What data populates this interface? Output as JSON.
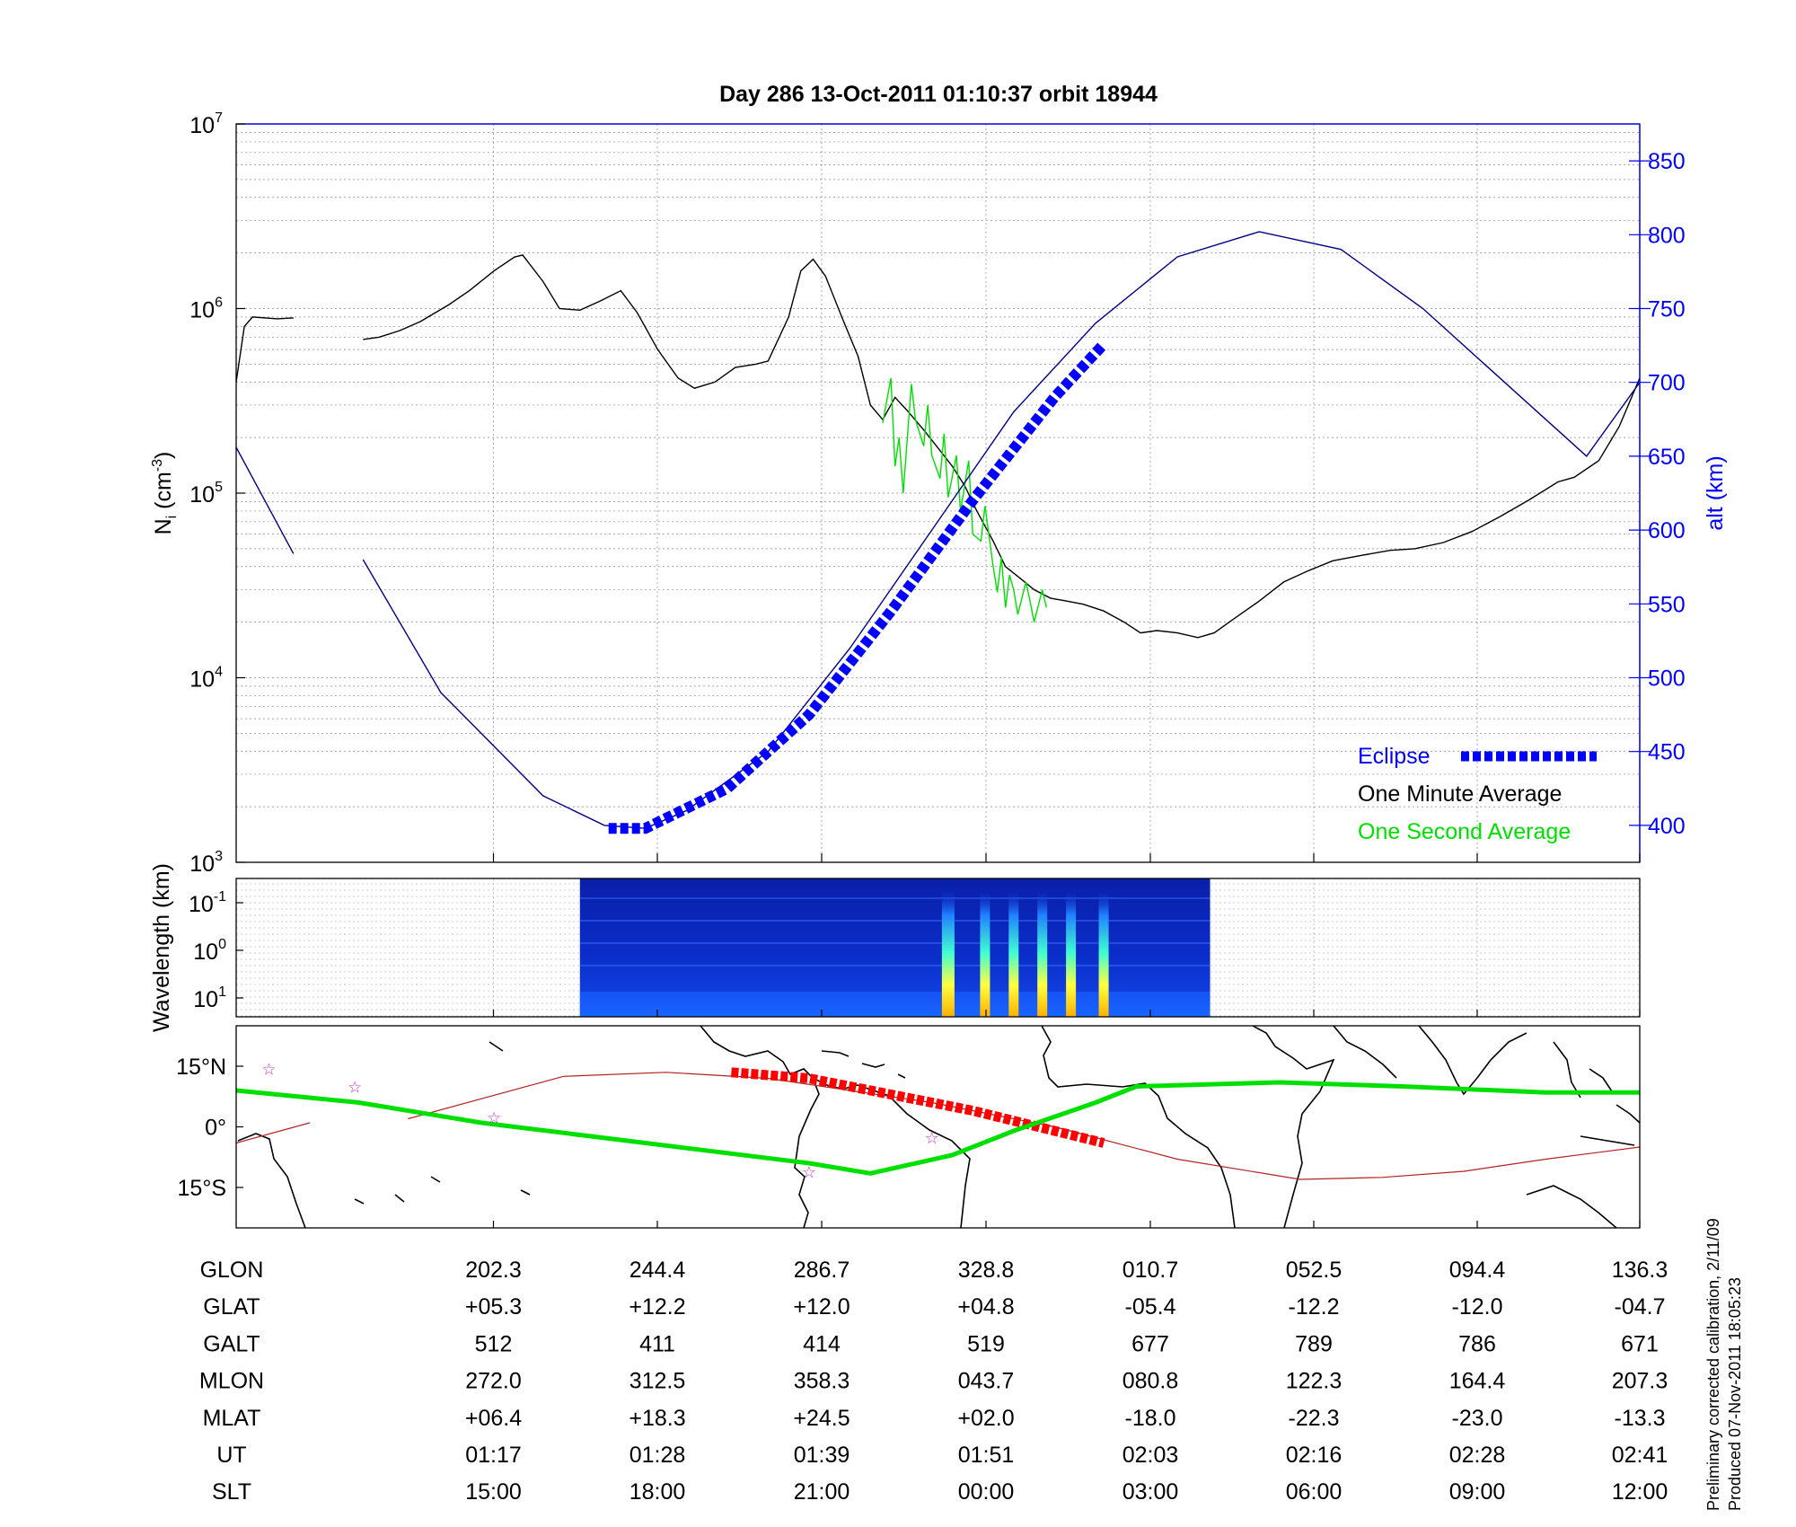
{
  "chart_data": [
    {
      "type": "line",
      "title": "Day 286  13-Oct-2011 01:10:37   orbit 18944",
      "ylabel": "N",
      "ylabel_sub": "i",
      "ylabel_unit": " (cm",
      "ylabel_unit_sup": "-3",
      "ylabel_unit_close": ")",
      "yscale": "log",
      "ylim": [
        1000,
        10000000
      ],
      "yticks": [
        {
          "base": "10",
          "exp": "3"
        },
        {
          "base": "10",
          "exp": "4"
        },
        {
          "base": "10",
          "exp": "5"
        },
        {
          "base": "10",
          "exp": "6"
        },
        {
          "base": "10",
          "exp": "7"
        }
      ],
      "y2label": "alt (km)",
      "y2lim": [
        375,
        875
      ],
      "y2ticks": [
        "400",
        "450",
        "500",
        "550",
        "600",
        "650",
        "700",
        "750",
        "800",
        "850"
      ],
      "x_ut": [
        "01:17",
        "01:28",
        "01:39",
        "01:51",
        "02:03",
        "02:16",
        "02:28",
        "02:41"
      ],
      "grid": true,
      "legend_position": "bottom-right",
      "legend": [
        {
          "label": "Eclipse",
          "color": "#0000ff"
        },
        {
          "label": "One Minute Average",
          "color": "#000000"
        },
        {
          "label": "One Second Average",
          "color": "#00e000"
        }
      ],
      "series": [
        {
          "name": "One Minute Average",
          "color": "#000000",
          "segments": [
            [
              [
                0,
                400000
              ],
              [
                0.02,
                800000
              ],
              [
                0.04,
                900000
              ],
              [
                0.1,
                880000
              ],
              [
                0.14,
                890000
              ]
            ],
            [
              [
                0.31,
                680000
              ],
              [
                0.35,
                700000
              ],
              [
                0.4,
                760000
              ],
              [
                0.45,
                850000
              ],
              [
                0.52,
                1050000
              ],
              [
                0.57,
                1250000
              ],
              [
                0.63,
                1600000
              ],
              [
                0.68,
                1900000
              ],
              [
                0.7,
                1950000
              ],
              [
                0.75,
                1400000
              ],
              [
                0.79,
                1000000
              ],
              [
                0.84,
                980000
              ],
              [
                0.89,
                1100000
              ],
              [
                0.94,
                1250000
              ],
              [
                0.98,
                950000
              ],
              [
                1.03,
                600000
              ],
              [
                1.08,
                420000
              ],
              [
                1.12,
                370000
              ],
              [
                1.17,
                400000
              ],
              [
                1.22,
                480000
              ],
              [
                1.27,
                500000
              ],
              [
                1.3,
                520000
              ],
              [
                1.35,
                900000
              ],
              [
                1.38,
                1600000
              ],
              [
                1.41,
                1850000
              ],
              [
                1.44,
                1500000
              ],
              [
                1.48,
                900000
              ],
              [
                1.52,
                550000
              ],
              [
                1.55,
                300000
              ],
              [
                1.58,
                250000
              ],
              [
                1.61,
                330000
              ],
              [
                1.64,
                280000
              ],
              [
                1.68,
                220000
              ],
              [
                1.72,
                170000
              ],
              [
                1.75,
                140000
              ],
              [
                1.78,
                110000
              ],
              [
                1.81,
                80000
              ],
              [
                1.85,
                55000
              ],
              [
                1.88,
                40000
              ],
              [
                1.92,
                34000
              ],
              [
                1.95,
                30000
              ],
              [
                1.99,
                27000
              ],
              [
                2.03,
                26000
              ],
              [
                2.07,
                25000
              ],
              [
                2.12,
                23000
              ],
              [
                2.17,
                20000
              ],
              [
                2.21,
                17500
              ],
              [
                2.25,
                18000
              ],
              [
                2.3,
                17500
              ],
              [
                2.35,
                16500
              ],
              [
                2.39,
                17500
              ],
              [
                2.44,
                21000
              ],
              [
                2.5,
                26000
              ],
              [
                2.56,
                33000
              ],
              [
                2.62,
                38000
              ],
              [
                2.68,
                43000
              ],
              [
                2.75,
                46000
              ],
              [
                2.82,
                49000
              ],
              [
                2.88,
                50000
              ],
              [
                2.95,
                54000
              ],
              [
                3.02,
                62000
              ],
              [
                3.09,
                75000
              ],
              [
                3.16,
                92000
              ],
              [
                3.23,
                115000
              ],
              [
                3.27,
                122000
              ],
              [
                3.33,
                150000
              ],
              [
                3.38,
                230000
              ],
              [
                3.43,
                420000
              ]
            ]
          ]
        },
        {
          "name": "One Second Average",
          "color": "#00e000",
          "segments": [
            [
              [
                1.58,
                240000
              ],
              [
                1.6,
                420000
              ],
              [
                1.61,
                140000
              ],
              [
                1.62,
                200000
              ],
              [
                1.63,
                100000
              ],
              [
                1.65,
                390000
              ],
              [
                1.66,
                250000
              ],
              [
                1.68,
                180000
              ],
              [
                1.69,
                300000
              ],
              [
                1.7,
                160000
              ],
              [
                1.72,
                120000
              ],
              [
                1.73,
                210000
              ],
              [
                1.74,
                95000
              ],
              [
                1.76,
                160000
              ],
              [
                1.77,
                80000
              ],
              [
                1.79,
                150000
              ],
              [
                1.8,
                60000
              ],
              [
                1.82,
                55000
              ],
              [
                1.83,
                85000
              ],
              [
                1.85,
                40000
              ],
              [
                1.86,
                29000
              ],
              [
                1.87,
                45000
              ],
              [
                1.88,
                24000
              ],
              [
                1.89,
                36000
              ],
              [
                1.9,
                30000
              ],
              [
                1.91,
                22000
              ],
              [
                1.93,
                33000
              ],
              [
                1.94,
                26000
              ],
              [
                1.95,
                20000
              ],
              [
                1.97,
                30000
              ],
              [
                1.98,
                24000
              ]
            ]
          ]
        },
        {
          "name": "alt (km)",
          "axis": "right",
          "color": "#00008b",
          "segments": [
            [
              [
                0,
                656
              ],
              [
                0.14,
                584
              ]
            ],
            [
              [
                0.31,
                580
              ],
              [
                0.5,
                490
              ],
              [
                0.75,
                420
              ],
              [
                0.9,
                400
              ],
              [
                1.0,
                398
              ],
              [
                1.1,
                410
              ],
              [
                1.3,
                450
              ],
              [
                1.5,
                520
              ],
              [
                1.7,
                600
              ],
              [
                1.9,
                680
              ],
              [
                2.1,
                740
              ],
              [
                2.3,
                785
              ],
              [
                2.5,
                802
              ],
              [
                2.7,
                790
              ],
              [
                2.9,
                750
              ],
              [
                3.1,
                700
              ],
              [
                3.3,
                650
              ],
              [
                3.43,
                700
              ]
            ]
          ]
        },
        {
          "name": "Eclipse",
          "axis": "right",
          "color": "#0000ff",
          "segments": [
            [
              [
                0.91,
                398
              ],
              [
                1.0,
                398
              ],
              [
                1.2,
                425
              ],
              [
                1.4,
                475
              ],
              [
                1.6,
                545
              ],
              [
                1.8,
                620
              ],
              [
                2.0,
                690
              ],
              [
                2.12,
                726
              ]
            ]
          ]
        }
      ]
    },
    {
      "type": "heatmap",
      "ylabel": "Wavelength (km)",
      "yticks": [
        {
          "base": "10",
          "exp": "-1"
        },
        {
          "base": "10",
          "exp": "0"
        },
        {
          "base": "10",
          "exp": "1"
        }
      ],
      "x_range": [
        0.84,
        2.38
      ],
      "bursts": [
        1.74,
        1.83,
        1.9,
        1.97,
        2.04,
        2.12
      ]
    },
    {
      "type": "map",
      "yticks": [
        "15°N",
        "0°",
        "15°S"
      ],
      "ylim": [
        -25,
        25
      ],
      "series": [
        {
          "name": "ground track",
          "color": "#b22222",
          "segments": [
            [
              [
                0,
                -4
              ],
              [
                0.18,
                1
              ]
            ],
            [
              [
                0.42,
                2
              ],
              [
                0.8,
                12.5
              ],
              [
                1.05,
                13.5
              ],
              [
                1.3,
                12
              ],
              [
                1.7,
                6
              ],
              [
                2.0,
                0
              ],
              [
                2.3,
                -8
              ],
              [
                2.6,
                -13
              ],
              [
                2.8,
                -12.5
              ],
              [
                3.0,
                -11
              ],
              [
                3.2,
                -8
              ],
              [
                3.43,
                -5
              ]
            ]
          ]
        },
        {
          "name": "eclipse track",
          "color": "#ff0000",
          "segments": [
            [
              [
                1.21,
                13.5
              ],
              [
                1.4,
                12
              ],
              [
                1.6,
                8
              ],
              [
                1.8,
                4
              ],
              [
                2.0,
                -1
              ],
              [
                2.12,
                -4
              ]
            ]
          ]
        },
        {
          "name": "magnetic equator",
          "color": "#00e000",
          "segments": [
            [
              [
                0,
                9
              ],
              [
                0.3,
                6
              ],
              [
                0.6,
                1
              ],
              [
                1.0,
                -4
              ],
              [
                1.4,
                -9
              ],
              [
                1.55,
                -11.5
              ],
              [
                1.75,
                -7
              ],
              [
                1.9,
                -1
              ],
              [
                2.1,
                6
              ],
              [
                2.2,
                10
              ],
              [
                2.55,
                11
              ],
              [
                2.85,
                10
              ],
              [
                3.2,
                8.5
              ],
              [
                3.43,
                8.5
              ]
            ]
          ]
        }
      ],
      "stars": [
        [
          0.08,
          14.5
        ],
        [
          0.29,
          10
        ],
        [
          0.63,
          2.5
        ],
        [
          1.4,
          -11
        ],
        [
          1.7,
          -2.5
        ]
      ]
    }
  ],
  "table": {
    "rows": [
      {
        "label": "GLON",
        "values": [
          "202.3",
          "244.4",
          "286.7",
          "328.8",
          "010.7",
          "052.5",
          "094.4",
          "136.3"
        ]
      },
      {
        "label": "GLAT",
        "values": [
          "+05.3",
          "+12.2",
          "+12.0",
          "+04.8",
          "-05.4",
          "-12.2",
          "-12.0",
          "-04.7"
        ]
      },
      {
        "label": "GALT",
        "values": [
          "512",
          "411",
          "414",
          "519",
          "677",
          "789",
          "786",
          "671"
        ]
      },
      {
        "label": "MLON",
        "values": [
          "272.0",
          "312.5",
          "358.3",
          "043.7",
          "080.8",
          "122.3",
          "164.4",
          "207.3"
        ]
      },
      {
        "label": "MLAT",
        "values": [
          "+06.4",
          "+18.3",
          "+24.5",
          "+02.0",
          "-18.0",
          "-22.3",
          "-23.0",
          "-13.3"
        ]
      },
      {
        "label": "UT",
        "values": [
          "01:17",
          "01:28",
          "01:39",
          "01:51",
          "02:03",
          "02:16",
          "02:28",
          "02:41"
        ]
      },
      {
        "label": "SLT",
        "values": [
          "15:00",
          "18:00",
          "21:00",
          "00:00",
          "03:00",
          "06:00",
          "09:00",
          "12:00"
        ]
      }
    ]
  },
  "notes": {
    "line1": "Preliminary corrected calibration, 2/11/09",
    "line2": "Produced 07-Nov-2011 18:05:23"
  }
}
